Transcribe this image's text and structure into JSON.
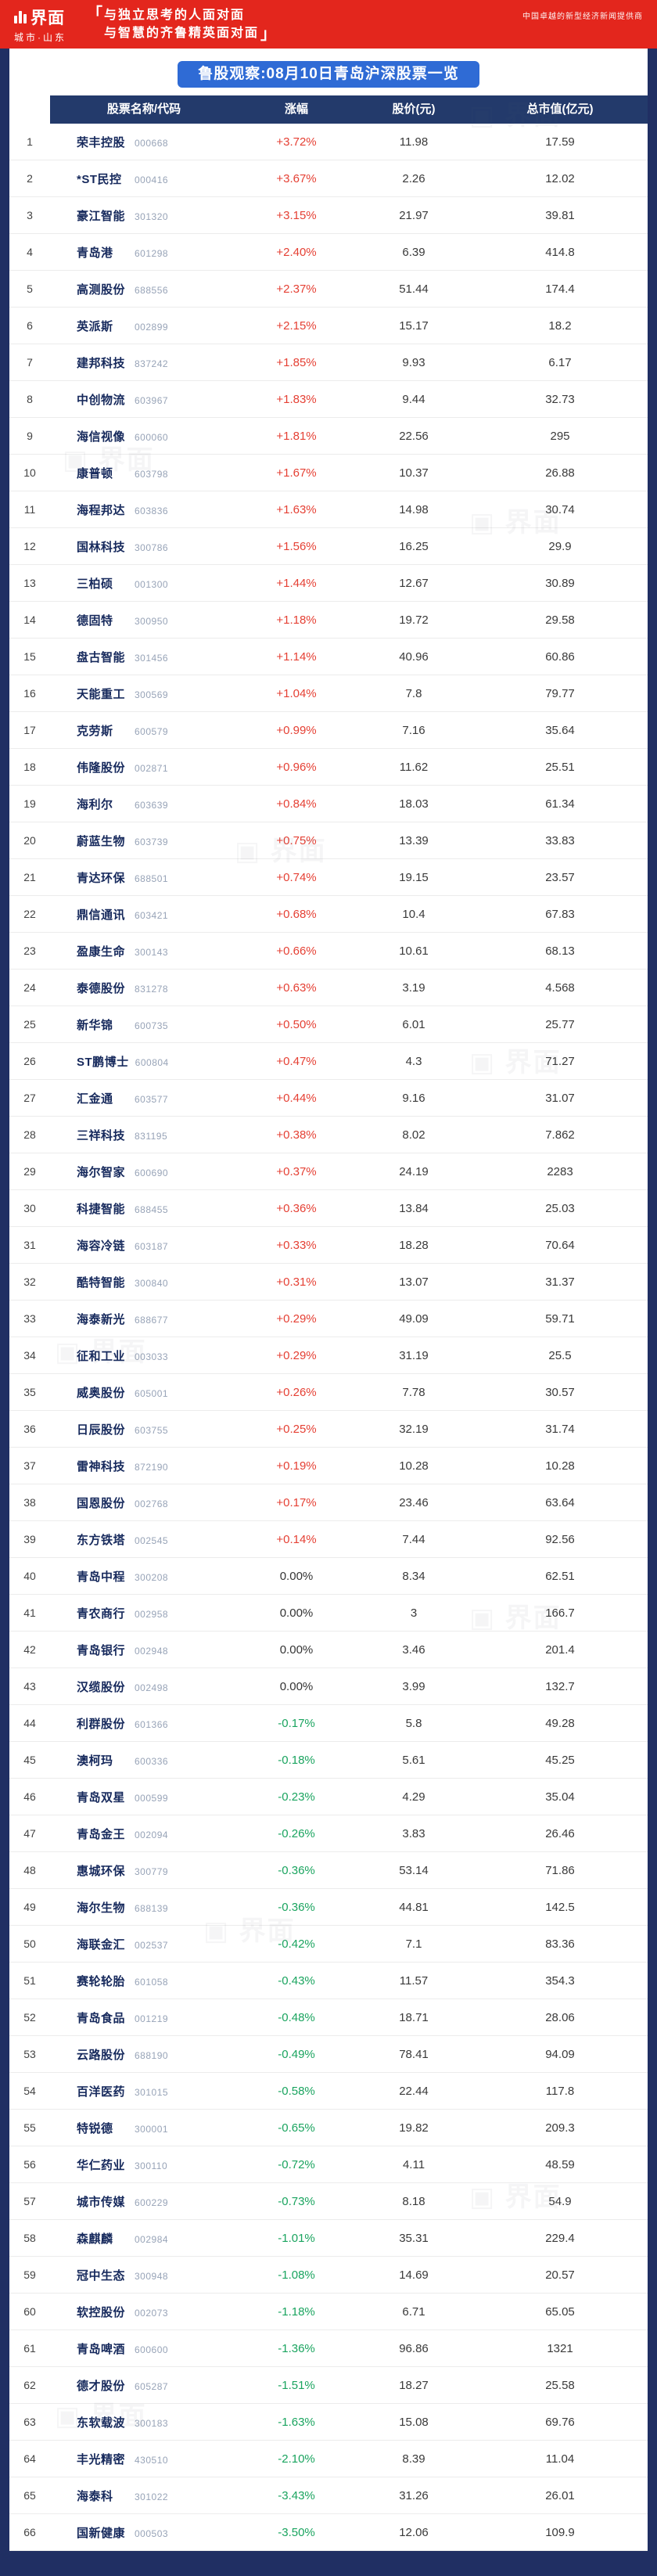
{
  "header": {
    "logo_text": "界面",
    "logo_sub": "城市·山东",
    "bracket_open": "「",
    "bracket_close": "」",
    "tagline_line1": "与独立思考的人面对面",
    "tagline_line2": "与智慧的齐鲁精英面对面",
    "right_slogan": "中国卓越的新型经济新闻提供商",
    "watermark_text": "界面"
  },
  "title": "鲁股观察:08月10日青岛沪深股票一览",
  "colors": {
    "banner_red": "#e3261d",
    "navy": "#202f63",
    "table_header_navy": "#233a6b",
    "title_blue": "#2f6bd5",
    "up_red": "#e54034",
    "down_green": "#1aa45f",
    "flat_dark": "#333333",
    "name_navy": "#16295c",
    "code_gray": "#97a3b7"
  },
  "chart_data": {
    "type": "table",
    "title": "鲁股观察:08月10日青岛沪深股票一览",
    "columns": [
      "股票名称/代码",
      "涨幅",
      "股价(元)",
      "总市值(亿元)"
    ],
    "rows": [
      {
        "name": "荣丰控股",
        "code": "000668",
        "change": "+3.72%",
        "price": "11.98",
        "cap": "17.59"
      },
      {
        "name": "*ST民控",
        "code": "000416",
        "change": "+3.67%",
        "price": "2.26",
        "cap": "12.02"
      },
      {
        "name": "豪江智能",
        "code": "301320",
        "change": "+3.15%",
        "price": "21.97",
        "cap": "39.81"
      },
      {
        "name": "青岛港",
        "code": "601298",
        "change": "+2.40%",
        "price": "6.39",
        "cap": "414.8"
      },
      {
        "name": "高测股份",
        "code": "688556",
        "change": "+2.37%",
        "price": "51.44",
        "cap": "174.4"
      },
      {
        "name": "英派斯",
        "code": "002899",
        "change": "+2.15%",
        "price": "15.17",
        "cap": "18.2"
      },
      {
        "name": "建邦科技",
        "code": "837242",
        "change": "+1.85%",
        "price": "9.93",
        "cap": "6.17"
      },
      {
        "name": "中创物流",
        "code": "603967",
        "change": "+1.83%",
        "price": "9.44",
        "cap": "32.73"
      },
      {
        "name": "海信视像",
        "code": "600060",
        "change": "+1.81%",
        "price": "22.56",
        "cap": "295"
      },
      {
        "name": "康普顿",
        "code": "603798",
        "change": "+1.67%",
        "price": "10.37",
        "cap": "26.88"
      },
      {
        "name": "海程邦达",
        "code": "603836",
        "change": "+1.63%",
        "price": "14.98",
        "cap": "30.74"
      },
      {
        "name": "国林科技",
        "code": "300786",
        "change": "+1.56%",
        "price": "16.25",
        "cap": "29.9"
      },
      {
        "name": "三柏硕",
        "code": "001300",
        "change": "+1.44%",
        "price": "12.67",
        "cap": "30.89"
      },
      {
        "name": "德固特",
        "code": "300950",
        "change": "+1.18%",
        "price": "19.72",
        "cap": "29.58"
      },
      {
        "name": "盘古智能",
        "code": "301456",
        "change": "+1.14%",
        "price": "40.96",
        "cap": "60.86"
      },
      {
        "name": "天能重工",
        "code": "300569",
        "change": "+1.04%",
        "price": "7.8",
        "cap": "79.77"
      },
      {
        "name": "克劳斯",
        "code": "600579",
        "change": "+0.99%",
        "price": "7.16",
        "cap": "35.64"
      },
      {
        "name": "伟隆股份",
        "code": "002871",
        "change": "+0.96%",
        "price": "11.62",
        "cap": "25.51"
      },
      {
        "name": "海利尔",
        "code": "603639",
        "change": "+0.84%",
        "price": "18.03",
        "cap": "61.34"
      },
      {
        "name": "蔚蓝生物",
        "code": "603739",
        "change": "+0.75%",
        "price": "13.39",
        "cap": "33.83"
      },
      {
        "name": "青达环保",
        "code": "688501",
        "change": "+0.74%",
        "price": "19.15",
        "cap": "23.57"
      },
      {
        "name": "鼎信通讯",
        "code": "603421",
        "change": "+0.68%",
        "price": "10.4",
        "cap": "67.83"
      },
      {
        "name": "盈康生命",
        "code": "300143",
        "change": "+0.66%",
        "price": "10.61",
        "cap": "68.13"
      },
      {
        "name": "泰德股份",
        "code": "831278",
        "change": "+0.63%",
        "price": "3.19",
        "cap": "4.568"
      },
      {
        "name": "新华锦",
        "code": "600735",
        "change": "+0.50%",
        "price": "6.01",
        "cap": "25.77"
      },
      {
        "name": "ST鹏博士",
        "code": "600804",
        "change": "+0.47%",
        "price": "4.3",
        "cap": "71.27"
      },
      {
        "name": "汇金通",
        "code": "603577",
        "change": "+0.44%",
        "price": "9.16",
        "cap": "31.07"
      },
      {
        "name": "三祥科技",
        "code": "831195",
        "change": "+0.38%",
        "price": "8.02",
        "cap": "7.862"
      },
      {
        "name": "海尔智家",
        "code": "600690",
        "change": "+0.37%",
        "price": "24.19",
        "cap": "2283"
      },
      {
        "name": "科捷智能",
        "code": "688455",
        "change": "+0.36%",
        "price": "13.84",
        "cap": "25.03"
      },
      {
        "name": "海容冷链",
        "code": "603187",
        "change": "+0.33%",
        "price": "18.28",
        "cap": "70.64"
      },
      {
        "name": "酷特智能",
        "code": "300840",
        "change": "+0.31%",
        "price": "13.07",
        "cap": "31.37"
      },
      {
        "name": "海泰新光",
        "code": "688677",
        "change": "+0.29%",
        "price": "49.09",
        "cap": "59.71"
      },
      {
        "name": "征和工业",
        "code": "003033",
        "change": "+0.29%",
        "price": "31.19",
        "cap": "25.5"
      },
      {
        "name": "威奥股份",
        "code": "605001",
        "change": "+0.26%",
        "price": "7.78",
        "cap": "30.57"
      },
      {
        "name": "日辰股份",
        "code": "603755",
        "change": "+0.25%",
        "price": "32.19",
        "cap": "31.74"
      },
      {
        "name": "雷神科技",
        "code": "872190",
        "change": "+0.19%",
        "price": "10.28",
        "cap": "10.28"
      },
      {
        "name": "国恩股份",
        "code": "002768",
        "change": "+0.17%",
        "price": "23.46",
        "cap": "63.64"
      },
      {
        "name": "东方铁塔",
        "code": "002545",
        "change": "+0.14%",
        "price": "7.44",
        "cap": "92.56"
      },
      {
        "name": "青岛中程",
        "code": "300208",
        "change": "0.00%",
        "price": "8.34",
        "cap": "62.51"
      },
      {
        "name": "青农商行",
        "code": "002958",
        "change": "0.00%",
        "price": "3",
        "cap": "166.7"
      },
      {
        "name": "青岛银行",
        "code": "002948",
        "change": "0.00%",
        "price": "3.46",
        "cap": "201.4"
      },
      {
        "name": "汉缆股份",
        "code": "002498",
        "change": "0.00%",
        "price": "3.99",
        "cap": "132.7"
      },
      {
        "name": "利群股份",
        "code": "601366",
        "change": "-0.17%",
        "price": "5.8",
        "cap": "49.28"
      },
      {
        "name": "澳柯玛",
        "code": "600336",
        "change": "-0.18%",
        "price": "5.61",
        "cap": "45.25"
      },
      {
        "name": "青岛双星",
        "code": "000599",
        "change": "-0.23%",
        "price": "4.29",
        "cap": "35.04"
      },
      {
        "name": "青岛金王",
        "code": "002094",
        "change": "-0.26%",
        "price": "3.83",
        "cap": "26.46"
      },
      {
        "name": "惠城环保",
        "code": "300779",
        "change": "-0.36%",
        "price": "53.14",
        "cap": "71.86"
      },
      {
        "name": "海尔生物",
        "code": "688139",
        "change": "-0.36%",
        "price": "44.81",
        "cap": "142.5"
      },
      {
        "name": "海联金汇",
        "code": "002537",
        "change": "-0.42%",
        "price": "7.1",
        "cap": "83.36"
      },
      {
        "name": "赛轮轮胎",
        "code": "601058",
        "change": "-0.43%",
        "price": "11.57",
        "cap": "354.3"
      },
      {
        "name": "青岛食品",
        "code": "001219",
        "change": "-0.48%",
        "price": "18.71",
        "cap": "28.06"
      },
      {
        "name": "云路股份",
        "code": "688190",
        "change": "-0.49%",
        "price": "78.41",
        "cap": "94.09"
      },
      {
        "name": "百洋医药",
        "code": "301015",
        "change": "-0.58%",
        "price": "22.44",
        "cap": "117.8"
      },
      {
        "name": "特锐德",
        "code": "300001",
        "change": "-0.65%",
        "price": "19.82",
        "cap": "209.3"
      },
      {
        "name": "华仁药业",
        "code": "300110",
        "change": "-0.72%",
        "price": "4.11",
        "cap": "48.59"
      },
      {
        "name": "城市传媒",
        "code": "600229",
        "change": "-0.73%",
        "price": "8.18",
        "cap": "54.9"
      },
      {
        "name": "森麒麟",
        "code": "002984",
        "change": "-1.01%",
        "price": "35.31",
        "cap": "229.4"
      },
      {
        "name": "冠中生态",
        "code": "300948",
        "change": "-1.08%",
        "price": "14.69",
        "cap": "20.57"
      },
      {
        "name": "软控股份",
        "code": "002073",
        "change": "-1.18%",
        "price": "6.71",
        "cap": "65.05"
      },
      {
        "name": "青岛啤酒",
        "code": "600600",
        "change": "-1.36%",
        "price": "96.86",
        "cap": "1321"
      },
      {
        "name": "德才股份",
        "code": "605287",
        "change": "-1.51%",
        "price": "18.27",
        "cap": "25.58"
      },
      {
        "name": "东软载波",
        "code": "300183",
        "change": "-1.63%",
        "price": "15.08",
        "cap": "69.76"
      },
      {
        "name": "丰光精密",
        "code": "430510",
        "change": "-2.10%",
        "price": "8.39",
        "cap": "11.04"
      },
      {
        "name": "海泰科",
        "code": "301022",
        "change": "-3.43%",
        "price": "31.26",
        "cap": "26.01"
      },
      {
        "name": "国新健康",
        "code": "000503",
        "change": "-3.50%",
        "price": "12.06",
        "cap": "109.9"
      }
    ]
  }
}
